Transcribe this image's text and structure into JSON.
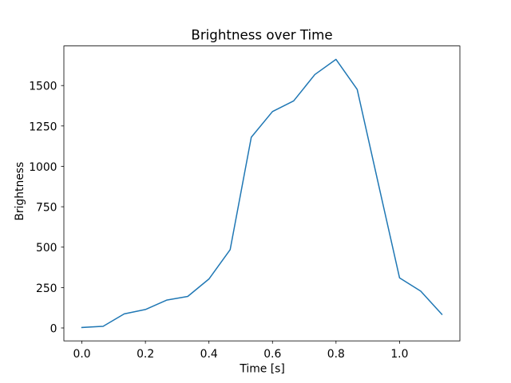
{
  "chart_data": {
    "type": "line",
    "title": "Brightness over Time",
    "xlabel": "Time [s]",
    "ylabel": "Brightness",
    "x": [
      0.0,
      0.0667,
      0.1333,
      0.2,
      0.2667,
      0.3333,
      0.4,
      0.4667,
      0.5333,
      0.6,
      0.6667,
      0.7333,
      0.8,
      0.8667,
      0.9333,
      1.0,
      1.0667,
      1.1333
    ],
    "y": [
      3,
      10,
      87,
      114,
      172,
      195,
      303,
      484,
      1180,
      1339,
      1405,
      1568,
      1662,
      1476,
      892,
      310,
      228,
      84
    ],
    "xticks": {
      "values": [
        0.0,
        0.2,
        0.4,
        0.6,
        0.8,
        1.0
      ],
      "labels": [
        "0.0",
        "0.2",
        "0.4",
        "0.6",
        "0.8",
        "1.0"
      ]
    },
    "yticks": {
      "values": [
        0,
        250,
        500,
        750,
        1000,
        1250,
        1500
      ],
      "labels": [
        "0",
        "250",
        "500",
        "750",
        "1000",
        "1250",
        "1500"
      ]
    },
    "xlim": [
      -0.0566667,
      1.19
    ],
    "ylim": [
      -79.95,
      1744.95
    ],
    "line_color": "#1f77b4",
    "axes_color": "#000000",
    "background_color": "#ffffff",
    "grid": false,
    "legend": false
  }
}
